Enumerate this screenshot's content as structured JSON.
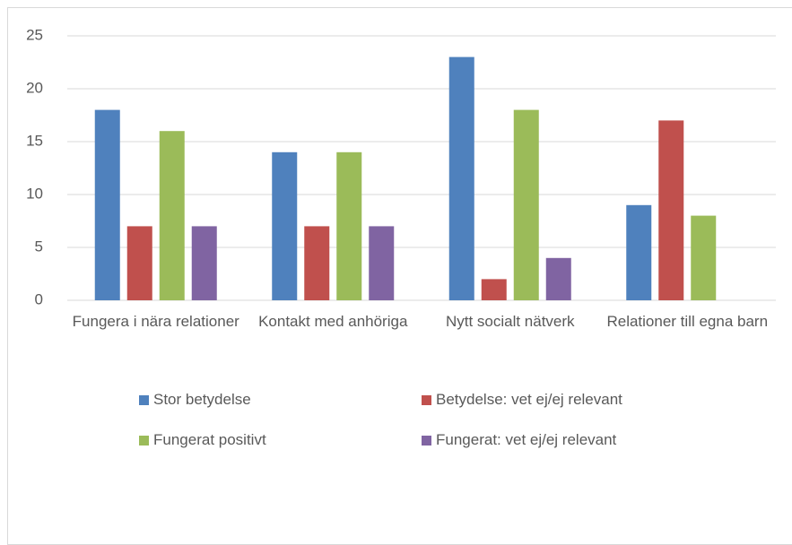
{
  "chart_data": {
    "type": "bar",
    "categories": [
      "Fungera i nära relationer",
      "Kontakt med anhöriga",
      "Nytt socialt nätverk",
      "Relationer till egna barn"
    ],
    "series": [
      {
        "name": "Stor betydelse",
        "color": "#4f81bd",
        "values": [
          18,
          14,
          23,
          9
        ]
      },
      {
        "name": "Betydelse: vet ej/ej relevant",
        "color": "#c0504d",
        "values": [
          7,
          7,
          2,
          17
        ]
      },
      {
        "name": "Fungerat positivt",
        "color": "#9bbb59",
        "values": [
          16,
          14,
          18,
          8
        ]
      },
      {
        "name": "Fungerat: vet ej/ej relevant",
        "color": "#8064a2",
        "values": [
          7,
          7,
          4,
          0
        ]
      }
    ],
    "ylim": [
      0,
      25
    ],
    "yticks": [
      0,
      5,
      10,
      15,
      20,
      25
    ],
    "grid": true,
    "legend": "bottom"
  }
}
